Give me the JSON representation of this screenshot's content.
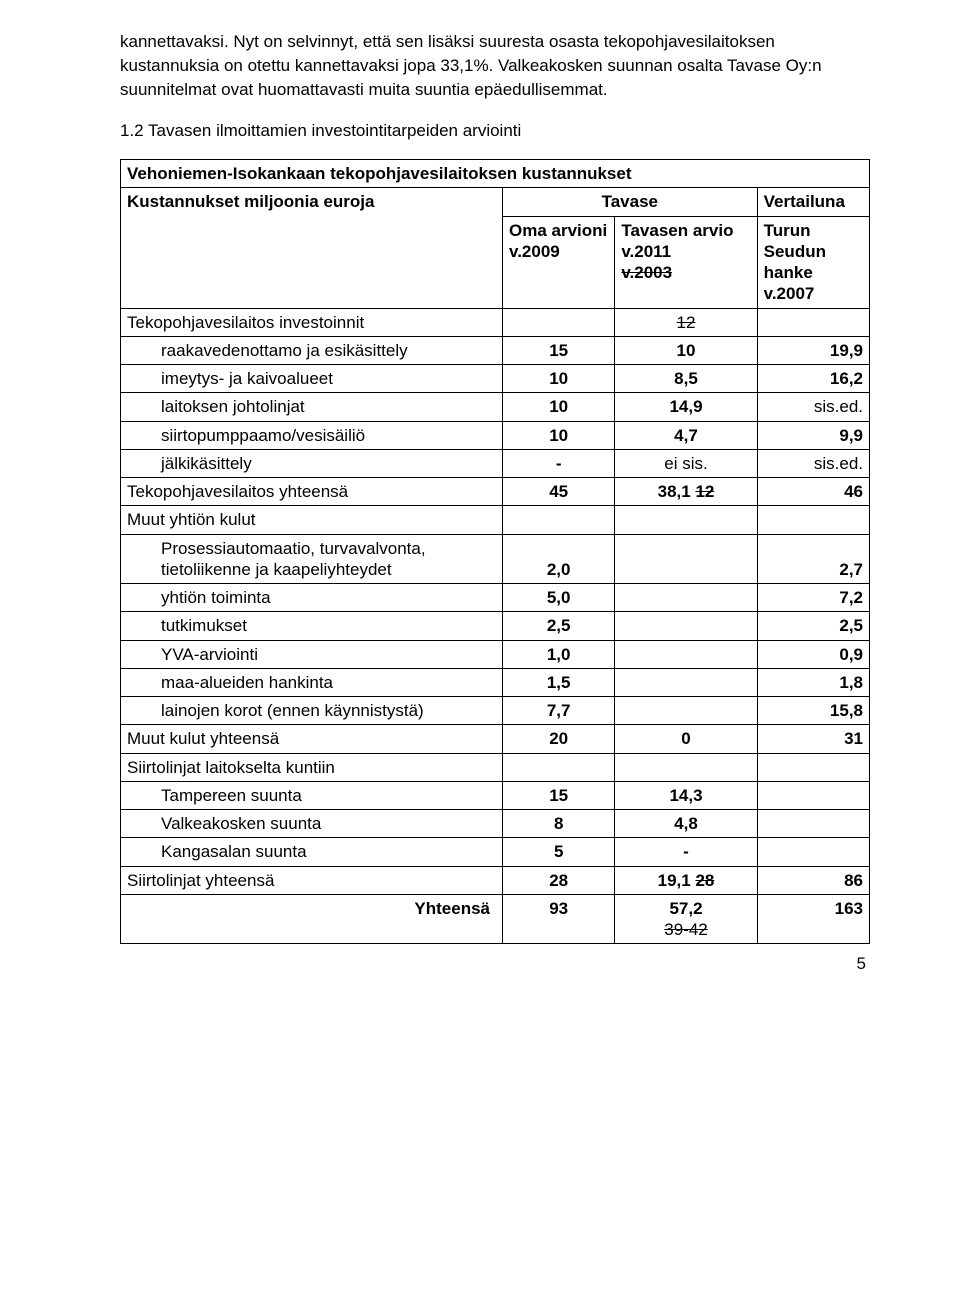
{
  "intro": {
    "p1": "kannettavaksi. Nyt on selvinnyt, että sen lisäksi suuresta osasta tekopohjavesilaitoksen kustannuksia on otettu kannettavaksi jopa 33,1%. Valkeakosken suunnan osalta Tavase Oy:n suunnitelmat ovat huomattavasti muita suuntia epäedullisemmat.",
    "heading": "1.2 Tavasen ilmoittamien investointitarpeiden arviointi"
  },
  "table": {
    "title": "Vehoniemen-Isokankaan tekopohjavesilaitoksen kustannukset",
    "header": {
      "left": "Kustannukset miljoonia euroja",
      "mid_top": "Tavase",
      "right_top": "Vertailuna",
      "col_a": "Oma arvioni v.2009",
      "col_b_top": "Tavasen arvio v.2011",
      "col_b_strike": "v.2003",
      "col_c_top": "Turun Seudun hanke",
      "col_c_bottom": "v.2007"
    },
    "rows": {
      "r1": {
        "label": "Tekopohjavesilaitos investoinnit",
        "a": "",
        "b_strike": "12",
        "c": ""
      },
      "r2": {
        "label": "raakavedenottamo ja esikäsittely",
        "a": "15",
        "b": "10",
        "c": "19,9"
      },
      "r3": {
        "label": "imeytys- ja kaivoalueet",
        "a": "10",
        "b": "8,5",
        "c": "16,2"
      },
      "r4": {
        "label": "laitoksen johtolinjat",
        "a": "10",
        "b": "14,9",
        "c": "sis.ed."
      },
      "r5": {
        "label": "siirtopumppaamo/vesisäiliö",
        "a": "10",
        "b": "4,7",
        "c": "9,9"
      },
      "r6": {
        "label": "jälkikäsittely",
        "a": "-",
        "b": "ei sis.",
        "c": "sis.ed."
      },
      "r7": {
        "label": "Tekopohjavesilaitos yhteensä",
        "a": "45",
        "b": "38,1",
        "b_strike": "12",
        "c": "46"
      },
      "r8": {
        "label": "Muut yhtiön kulut"
      },
      "r9": {
        "label": "Prosessiautomaatio, turvavalvonta, tietoliikenne ja  kaapeliyhteydet",
        "a": "2,0",
        "b": "",
        "c": "2,7"
      },
      "r10": {
        "label": "yhtiön toiminta",
        "a": "5,0",
        "b": "",
        "c": "7,2"
      },
      "r11": {
        "label": "tutkimukset",
        "a": "2,5",
        "b": "",
        "c": "2,5"
      },
      "r12": {
        "label": "YVA-arviointi",
        "a": "1,0",
        "b": "",
        "c": "0,9"
      },
      "r13": {
        "label": "maa-alueiden hankinta",
        "a": "1,5",
        "b": "",
        "c": "1,8"
      },
      "r14": {
        "label": "lainojen korot (ennen käynnistystä)",
        "a": "7,7",
        "b": "",
        "c": "15,8"
      },
      "r15": {
        "label": "Muut kulut yhteensä",
        "a": "20",
        "b": "0",
        "c": "31"
      },
      "r16": {
        "label": "Siirtolinjat laitokselta kuntiin"
      },
      "r17": {
        "label": "Tampereen suunta",
        "a": "15",
        "b": "14,3",
        "c": ""
      },
      "r18": {
        "label": "Valkeakosken suunta",
        "a": "8",
        "b": "4,8",
        "c": ""
      },
      "r19": {
        "label": "Kangasalan suunta",
        "a": "5",
        "b": "-",
        "c": ""
      },
      "r20": {
        "label": "Siirtolinjat yhteensä",
        "a": "28",
        "b": "19,1",
        "b_strike": "28",
        "c": "86"
      },
      "r21": {
        "label": "Yhteensä",
        "a": "93",
        "b": "57,2",
        "b_strike": "39-42",
        "c": "163"
      }
    }
  },
  "pageno": "5"
}
